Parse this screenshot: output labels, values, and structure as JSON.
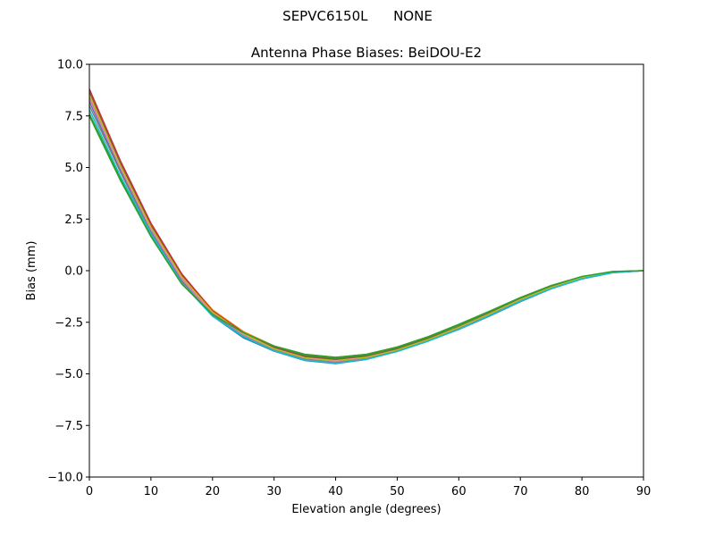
{
  "suptitle": "SEPVC6150L      NONE",
  "chart_data": {
    "type": "line",
    "title": "Antenna Phase Biases: BeiDOU-E2",
    "xlabel": "Elevation angle (degrees)",
    "ylabel": "Bias (mm)",
    "xlim": [
      0,
      90
    ],
    "ylim": [
      -10,
      10
    ],
    "x_ticks": [
      0,
      10,
      20,
      30,
      40,
      50,
      60,
      70,
      80,
      90
    ],
    "x_tick_labels": [
      "0",
      "10",
      "20",
      "30",
      "40",
      "50",
      "60",
      "70",
      "80",
      "90"
    ],
    "y_ticks": [
      -10,
      -7.5,
      -5,
      -2.5,
      0,
      2.5,
      5,
      7.5,
      10
    ],
    "y_tick_labels": [
      "−10.0",
      "−7.5",
      "−5.0",
      "−2.5",
      "0.0",
      "2.5",
      "5.0",
      "7.5",
      "10.0"
    ],
    "grid": false,
    "legend": "none",
    "x": [
      0,
      5,
      10,
      15,
      20,
      25,
      30,
      35,
      40,
      45,
      50,
      55,
      60,
      65,
      70,
      75,
      80,
      85,
      90
    ],
    "series": [
      {
        "color": "#1f77b4",
        "values": [
          8.2,
          4.9,
          1.9,
          -0.5,
          -2.2,
          -3.25,
          -3.9,
          -4.35,
          -4.5,
          -4.3,
          -3.9,
          -3.4,
          -2.85,
          -2.2,
          -1.5,
          -0.88,
          -0.4,
          -0.1,
          0.0
        ]
      },
      {
        "color": "#ff7f0e",
        "values": [
          8.6,
          5.2,
          2.25,
          -0.2,
          -1.9,
          -2.95,
          -3.65,
          -4.05,
          -4.2,
          -4.05,
          -3.7,
          -3.2,
          -2.62,
          -1.98,
          -1.32,
          -0.74,
          -0.3,
          -0.05,
          0.0
        ]
      },
      {
        "color": "#2ca02c",
        "values": [
          7.6,
          4.5,
          1.7,
          -0.6,
          -2.1,
          -3.05,
          -3.7,
          -4.1,
          -4.25,
          -4.1,
          -3.75,
          -3.25,
          -2.65,
          -2.0,
          -1.33,
          -0.75,
          -0.3,
          -0.05,
          0.0
        ]
      },
      {
        "color": "#d62728",
        "values": [
          8.8,
          5.35,
          2.3,
          -0.15,
          -1.95,
          -3.0,
          -3.75,
          -4.2,
          -4.35,
          -4.2,
          -3.85,
          -3.35,
          -2.78,
          -2.12,
          -1.42,
          -0.82,
          -0.35,
          -0.07,
          0.0
        ]
      },
      {
        "color": "#9467bd",
        "values": [
          8.4,
          5.05,
          2.05,
          -0.35,
          -2.05,
          -3.1,
          -3.8,
          -4.25,
          -4.4,
          -4.25,
          -3.88,
          -3.38,
          -2.8,
          -2.15,
          -1.45,
          -0.85,
          -0.37,
          -0.08,
          0.0
        ]
      },
      {
        "color": "#8c564b",
        "values": [
          8.7,
          5.25,
          2.2,
          -0.25,
          -2.0,
          -3.0,
          -3.72,
          -4.15,
          -4.3,
          -4.15,
          -3.8,
          -3.3,
          -2.72,
          -2.06,
          -1.38,
          -0.79,
          -0.33,
          -0.06,
          0.0
        ]
      },
      {
        "color": "#e377c2",
        "values": [
          8.3,
          5.0,
          2.0,
          -0.4,
          -2.1,
          -3.12,
          -3.83,
          -4.28,
          -4.42,
          -4.27,
          -3.9,
          -3.4,
          -2.82,
          -2.16,
          -1.46,
          -0.86,
          -0.38,
          -0.09,
          0.0
        ]
      },
      {
        "color": "#7f7f7f",
        "values": [
          8.0,
          4.8,
          1.85,
          -0.55,
          -2.15,
          -3.18,
          -3.86,
          -4.3,
          -4.46,
          -4.28,
          -3.9,
          -3.4,
          -2.83,
          -2.17,
          -1.47,
          -0.86,
          -0.38,
          -0.09,
          0.0
        ]
      },
      {
        "color": "#bcbd22",
        "values": [
          8.5,
          5.1,
          2.1,
          -0.3,
          -2.0,
          -3.05,
          -3.78,
          -4.22,
          -4.36,
          -4.2,
          -3.84,
          -3.34,
          -2.75,
          -2.09,
          -1.4,
          -0.81,
          -0.34,
          -0.07,
          0.0
        ]
      },
      {
        "color": "#17becf",
        "values": [
          7.8,
          4.6,
          1.8,
          -0.6,
          -2.2,
          -3.2,
          -3.88,
          -4.33,
          -4.48,
          -4.3,
          -3.92,
          -3.42,
          -2.84,
          -2.18,
          -1.48,
          -0.87,
          -0.39,
          -0.09,
          0.0
        ]
      },
      {
        "color": "#2ca02c",
        "values": [
          7.5,
          4.4,
          1.65,
          -0.65,
          -2.12,
          -3.0,
          -3.65,
          -4.05,
          -4.2,
          -4.05,
          -3.7,
          -3.2,
          -2.6,
          -1.96,
          -1.3,
          -0.72,
          -0.28,
          -0.04,
          0.0
        ]
      }
    ]
  }
}
